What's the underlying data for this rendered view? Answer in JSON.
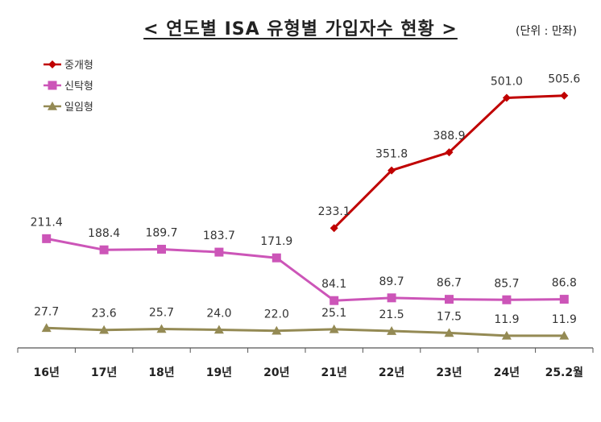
{
  "header": {
    "title": "< 연도별 ISA 유형별 가입자수 현황 >",
    "unit": "(단위 : 만좌)"
  },
  "chart_data": {
    "type": "line",
    "title": "< 연도별 ISA 유형별 가입자수 현황 >",
    "unit": "(단위 : 만좌)",
    "categories": [
      "16년",
      "17년",
      "18년",
      "19년",
      "20년",
      "21년",
      "22년",
      "23년",
      "24년",
      "25.2월"
    ],
    "series": [
      {
        "name": "중개형",
        "color": "#c00000",
        "marker": "diamond",
        "values": [
          null,
          null,
          null,
          null,
          null,
          233.1,
          351.8,
          388.9,
          501.0,
          505.6
        ],
        "labels": [
          "",
          "",
          "",
          "",
          "",
          "233.1",
          "351.8",
          "388.9",
          "501.0",
          "505.6"
        ]
      },
      {
        "name": "신탁형",
        "color": "#cc55b8",
        "marker": "square",
        "values": [
          211.4,
          188.4,
          189.7,
          183.7,
          171.9,
          84.1,
          89.7,
          86.7,
          85.7,
          86.8
        ],
        "labels": [
          "211.4",
          "188.4",
          "189.7",
          "183.7",
          "171.9",
          "84.1",
          "89.7",
          "86.7",
          "85.7",
          "86.8"
        ]
      },
      {
        "name": "일임형",
        "color": "#948a54",
        "marker": "triangle",
        "values": [
          27.7,
          23.6,
          25.7,
          24.0,
          22.0,
          25.1,
          21.5,
          17.5,
          11.9,
          11.9
        ],
        "labels": [
          "27.7",
          "23.6",
          "25.7",
          "24.0",
          "22.0",
          "25.1",
          "21.5",
          "17.5",
          "11.9",
          "11.9"
        ]
      }
    ],
    "ylim": [
      0,
      520
    ],
    "grid": false,
    "legend_position": "top-left"
  }
}
